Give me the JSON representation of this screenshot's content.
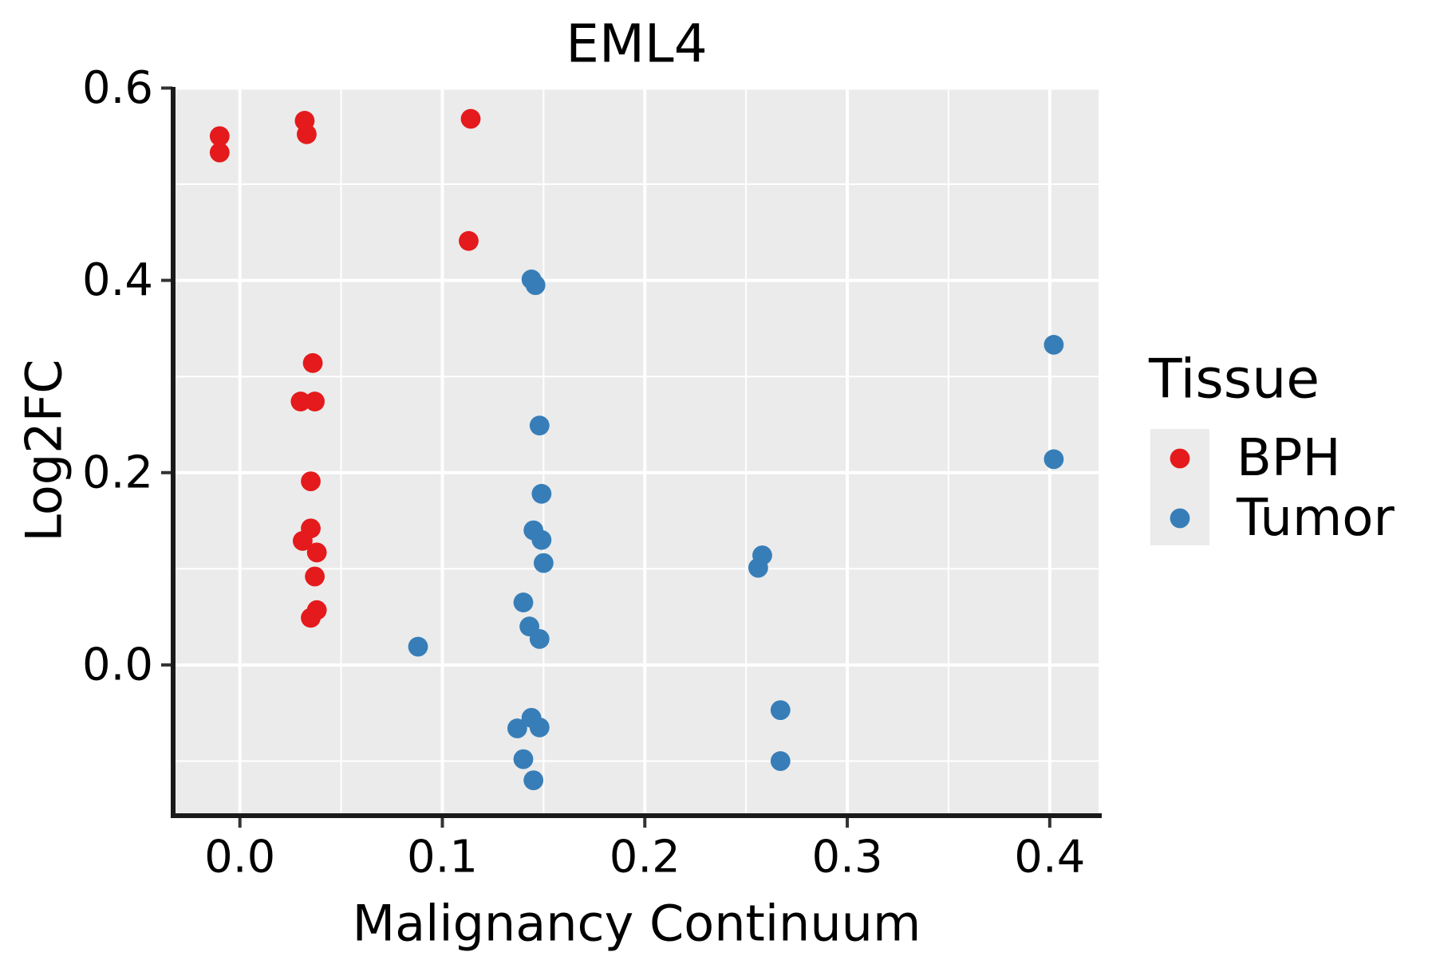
{
  "chart_data": {
    "type": "scatter",
    "title": "EML4",
    "x_axis": {
      "label": "Malignancy Continuum",
      "range": [
        -0.0318,
        0.4241
      ],
      "major_ticks": [
        {
          "value": 0.0,
          "label": "0.0"
        },
        {
          "value": 0.1,
          "label": "0.1"
        },
        {
          "value": 0.2,
          "label": "0.2"
        },
        {
          "value": 0.3,
          "label": "0.3"
        },
        {
          "value": 0.4,
          "label": "0.4"
        }
      ],
      "minor_gridlines": [
        0.05,
        0.15,
        0.25,
        0.35
      ]
    },
    "y_axis": {
      "label": "Log2FC",
      "range": [
        -0.1543,
        0.6012
      ],
      "major_ticks": [
        {
          "value": 0.0,
          "label": "0.0"
        },
        {
          "value": 0.2,
          "label": "0.2"
        },
        {
          "value": 0.4,
          "label": "0.4"
        },
        {
          "value": 0.6,
          "label": "0.6"
        }
      ],
      "minor_gridlines": [
        -0.1,
        0.1,
        0.3,
        0.5
      ]
    },
    "legend": {
      "title": "Tissue",
      "position": "right",
      "entries": [
        {
          "label": "BPH",
          "color": "#E41A1C"
        },
        {
          "label": "Tumor",
          "color": "#377EB8"
        }
      ]
    },
    "grid": "major+minor",
    "series": [
      {
        "name": "BPH",
        "color": "#E41A1C",
        "points": [
          [
            -0.01,
            0.55
          ],
          [
            -0.01,
            0.533
          ],
          [
            0.032,
            0.566
          ],
          [
            0.033,
            0.552
          ],
          [
            0.114,
            0.568
          ],
          [
            0.113,
            0.441
          ],
          [
            0.036,
            0.314
          ],
          [
            0.03,
            0.274
          ],
          [
            0.037,
            0.274
          ],
          [
            0.035,
            0.191
          ],
          [
            0.035,
            0.142
          ],
          [
            0.031,
            0.129
          ],
          [
            0.038,
            0.117
          ],
          [
            0.037,
            0.092
          ],
          [
            0.038,
            0.057
          ],
          [
            0.035,
            0.049
          ]
        ]
      },
      {
        "name": "Tumor",
        "color": "#377EB8",
        "points": [
          [
            0.144,
            0.401
          ],
          [
            0.146,
            0.395
          ],
          [
            0.148,
            0.249
          ],
          [
            0.149,
            0.178
          ],
          [
            0.145,
            0.14
          ],
          [
            0.149,
            0.13
          ],
          [
            0.15,
            0.106
          ],
          [
            0.14,
            0.065
          ],
          [
            0.143,
            0.04
          ],
          [
            0.148,
            0.027
          ],
          [
            0.088,
            0.019
          ],
          [
            0.137,
            -0.066
          ],
          [
            0.144,
            -0.055
          ],
          [
            0.148,
            -0.065
          ],
          [
            0.14,
            -0.098
          ],
          [
            0.145,
            -0.12
          ],
          [
            0.258,
            0.114
          ],
          [
            0.256,
            0.101
          ],
          [
            0.267,
            -0.047
          ],
          [
            0.267,
            -0.1
          ],
          [
            0.402,
            0.333
          ],
          [
            0.402,
            0.214
          ]
        ]
      }
    ]
  },
  "style": {
    "panel_bg": "#EBEBEB",
    "grid_color": "#FFFFFF",
    "spine_color": "#1A1A1A",
    "tick_color": "#333333",
    "text_color": "#000000",
    "marker_radius": 12.4
  }
}
